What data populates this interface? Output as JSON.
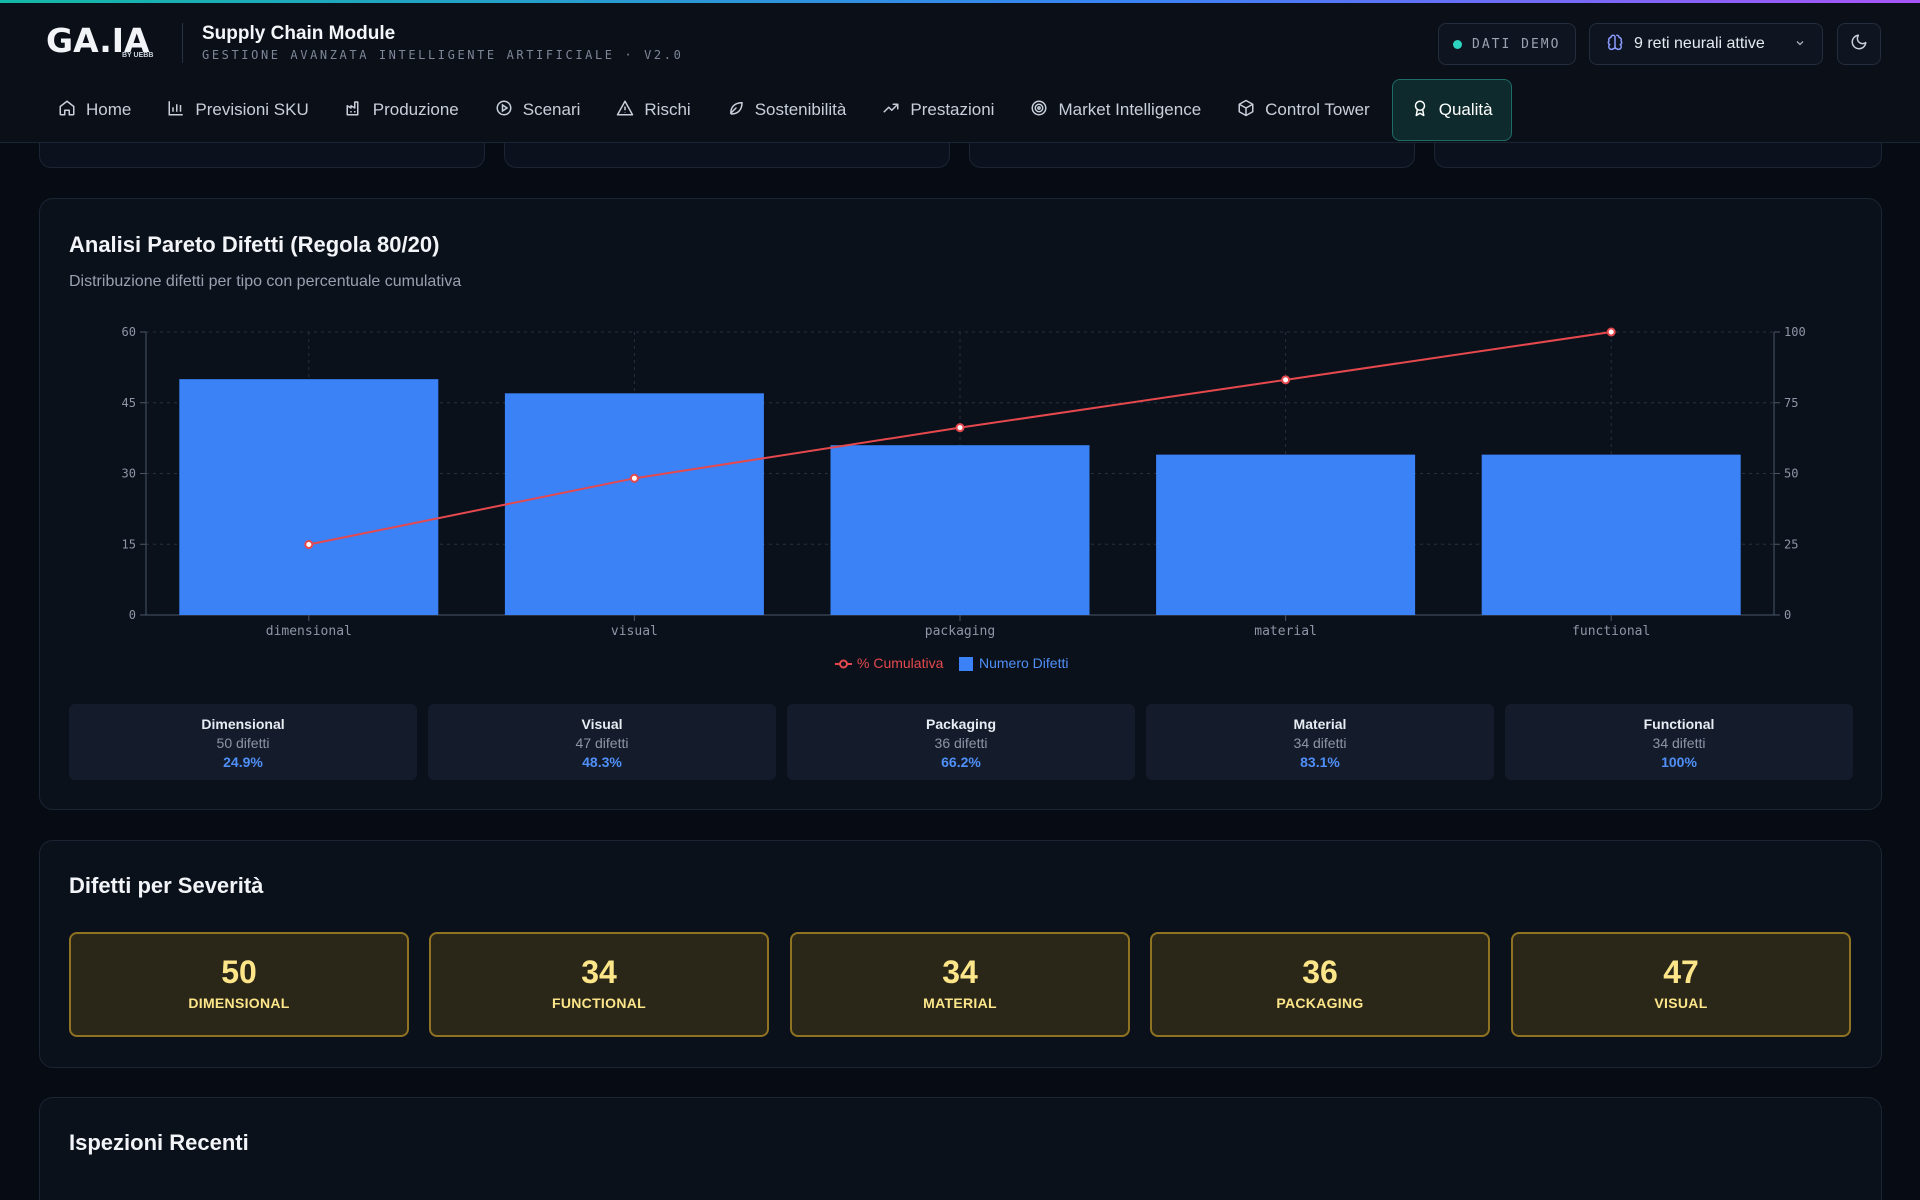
{
  "header": {
    "logo": "GA.IA",
    "logo_by": "BY UEBB",
    "title": "Supply Chain Module",
    "subtitle": "GESTIONE AVANZATA INTELLIGENTE ARTIFICIALE · V2.0",
    "demo_badge": "DATI DEMO",
    "neural_nets": "9 reti neurali attive",
    "theme_toggle_icon": "moon-icon"
  },
  "nav": {
    "items": [
      {
        "label": "Home",
        "icon": "home-icon"
      },
      {
        "label": "Previsioni SKU",
        "icon": "bar-chart-icon"
      },
      {
        "label": "Produzione",
        "icon": "factory-icon"
      },
      {
        "label": "Scenari",
        "icon": "play-circle-icon"
      },
      {
        "label": "Rischi",
        "icon": "warning-icon"
      },
      {
        "label": "Sostenibilità",
        "icon": "leaf-icon"
      },
      {
        "label": "Prestazioni",
        "icon": "trending-up-icon"
      },
      {
        "label": "Market Intelligence",
        "icon": "target-icon"
      },
      {
        "label": "Control Tower",
        "icon": "box-icon"
      },
      {
        "label": "Qualità",
        "icon": "award-icon",
        "active": true
      }
    ]
  },
  "pareto": {
    "title": "Analisi Pareto Difetti (Regola 80/20)",
    "subtitle": "Distribuzione difetti per tipo con percentuale cumulativa",
    "stats": [
      {
        "name": "Dimensional",
        "count": "50 difetti",
        "pct": "24.9%"
      },
      {
        "name": "Visual",
        "count": "47 difetti",
        "pct": "48.3%"
      },
      {
        "name": "Packaging",
        "count": "36 difetti",
        "pct": "66.2%"
      },
      {
        "name": "Material",
        "count": "34 difetti",
        "pct": "83.1%"
      },
      {
        "name": "Functional",
        "count": "34 difetti",
        "pct": "100%"
      }
    ]
  },
  "chart_data": {
    "type": "bar",
    "categories": [
      "dimensional",
      "visual",
      "packaging",
      "material",
      "functional"
    ],
    "series": [
      {
        "name": "Numero Difetti",
        "type": "bar",
        "axis": "left",
        "values": [
          50,
          47,
          36,
          34,
          34
        ],
        "color": "#3b82f6"
      },
      {
        "name": "% Cumulativa",
        "type": "line",
        "axis": "right",
        "values": [
          24.9,
          48.3,
          66.2,
          83.1,
          100
        ],
        "color": "#e5484d"
      }
    ],
    "y_left": {
      "min": 0,
      "max": 60,
      "ticks": [
        0,
        15,
        30,
        45,
        60
      ]
    },
    "y_right": {
      "min": 0,
      "max": 100,
      "ticks": [
        0,
        25,
        50,
        75,
        100
      ]
    },
    "grid": true,
    "legend": "bottom-center"
  },
  "severity": {
    "title": "Difetti per Severità",
    "items": [
      {
        "value": "50",
        "label": "DIMENSIONAL"
      },
      {
        "value": "34",
        "label": "FUNCTIONAL"
      },
      {
        "value": "34",
        "label": "MATERIAL"
      },
      {
        "value": "36",
        "label": "PACKAGING"
      },
      {
        "value": "47",
        "label": "VISUAL"
      }
    ]
  },
  "inspections": {
    "title": "Ispezioni Recenti"
  },
  "colors": {
    "accent_teal": "#2dd4bf",
    "bar_blue": "#3b82f6",
    "line_red": "#e5484d",
    "severity_gold": "#fde68a"
  }
}
